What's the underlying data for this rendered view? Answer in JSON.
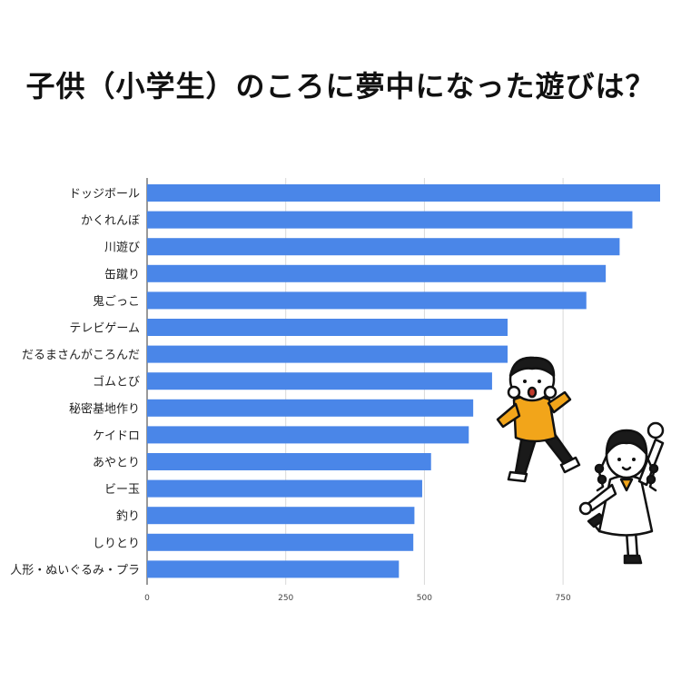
{
  "title": "子供（小学生）のころに夢中になった遊びは？",
  "chart_data": {
    "type": "bar",
    "orientation": "horizontal",
    "title": "子供（小学生）のころに夢中になった遊びは？",
    "categories": [
      "ドッジボール",
      "かくれんぼ",
      "川遊び",
      "缶蹴り",
      "鬼ごっこ",
      "テレビゲーム",
      "だるまさんがころんだ",
      "ゴムとび",
      "秘密基地作り",
      "ケイドロ",
      "あやとり",
      "ビー玉",
      "釣り",
      "しりとり",
      "人形・ぬいぐるみ・プラ"
    ],
    "values": [
      925,
      875,
      852,
      827,
      792,
      650,
      650,
      622,
      588,
      580,
      512,
      496,
      482,
      480,
      454
    ],
    "xlim": [
      0,
      925
    ],
    "xticks": [
      0,
      250,
      500,
      750
    ],
    "grid": true,
    "bar_color": "#4a86e8",
    "xlabel": "",
    "ylabel": ""
  },
  "illustration": {
    "description_icons": [
      "boy-icon",
      "girl-icon"
    ],
    "boy_shirt_color": "#f2a51a",
    "girl_dress_color": "#ffffff"
  }
}
